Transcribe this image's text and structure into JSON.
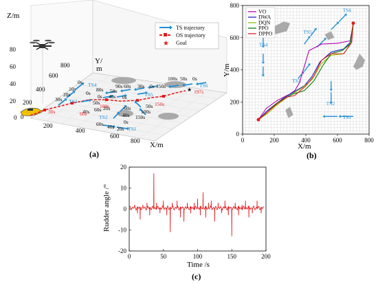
{
  "colors": {
    "ts": "#1f8fd6",
    "os": "#e41a1c",
    "vo": "#b000b0",
    "dwa": "#2020c0",
    "dqn": "#90c000",
    "ppo": "#008000",
    "dppo": "#e41a1c",
    "obstacle": "#a9a9a9",
    "grid": "#d0d0d0"
  },
  "chart_data": [
    {
      "id": "a",
      "type": "scatter",
      "caption": "(a)",
      "zlabel": "Z/m",
      "ylabel": "Y/\nm",
      "xlabel": "X/m",
      "z_ticks": [
        "80",
        "60",
        "40",
        "20",
        "0"
      ],
      "y_ticks": [
        "800",
        "600",
        "400",
        "200",
        "0"
      ],
      "x_ticks": [
        "200",
        "400",
        "600",
        "800"
      ],
      "legend": [
        {
          "label": "TS  trajectory",
          "marker": "arrow-blue"
        },
        {
          "label": "OS  trajectory",
          "marker": "dash-red"
        },
        {
          "label": "Goal",
          "marker": "star-red"
        }
      ],
      "ts_labels": [
        "TS1",
        "TS2",
        "TS3",
        "TS4",
        "TS5",
        "TS6"
      ],
      "time_labels_black": [
        "0s",
        "10s",
        "20s",
        "30s",
        "0s",
        "50s",
        "40s",
        "0s",
        "20s",
        "40s",
        "60s",
        "90s",
        "60s",
        "30s",
        "0s",
        "150s",
        "100s",
        "50s",
        "0s",
        "50s",
        "100s",
        "150s",
        "60s",
        "40s",
        "20s",
        "0s",
        "40s",
        "60s",
        "80s",
        "50s",
        "0s"
      ],
      "time_labels_red": [
        "30s",
        "60s",
        "100s",
        "150s",
        "197s"
      ]
    },
    {
      "id": "b",
      "type": "line",
      "caption": "(b)",
      "xlabel": "X/m",
      "ylabel": "Y/m",
      "xlim": [
        0,
        800
      ],
      "ylim": [
        0,
        800
      ],
      "x_ticks": [
        0,
        200,
        400,
        600,
        800
      ],
      "y_ticks": [
        0,
        200,
        400,
        600,
        800
      ],
      "grid": true,
      "legend_position": "top-left",
      "ts_labels": [
        {
          "label": "TS1",
          "x": 660,
          "y": 95
        },
        {
          "label": "TS2",
          "x": 555,
          "y": 180
        },
        {
          "label": "TS3",
          "x": 340,
          "y": 320
        },
        {
          "label": "TS4",
          "x": 130,
          "y": 545
        },
        {
          "label": "TS5",
          "x": 410,
          "y": 625
        },
        {
          "label": "TS6",
          "x": 660,
          "y": 760
        }
      ],
      "obstacles": [
        {
          "name": "obstacle-1",
          "points": [
            [
              180,
              660
            ],
            [
              260,
              700
            ],
            [
              300,
              690
            ],
            [
              280,
              640
            ],
            [
              200,
              620
            ]
          ]
        },
        {
          "name": "obstacle-2",
          "points": [
            [
              520,
              620
            ],
            [
              560,
              640
            ],
            [
              580,
              600
            ],
            [
              540,
              585
            ]
          ]
        },
        {
          "name": "obstacle-3",
          "points": [
            [
              700,
              420
            ],
            [
              740,
              500
            ],
            [
              775,
              460
            ],
            [
              760,
              420
            ],
            [
              720,
              400
            ]
          ]
        },
        {
          "name": "obstacle-4",
          "points": [
            [
              270,
              150
            ],
            [
              300,
              170
            ],
            [
              320,
              120
            ],
            [
              290,
              100
            ]
          ]
        }
      ],
      "series": [
        {
          "name": "VO",
          "points": [
            [
              100,
              90
            ],
            [
              150,
              160
            ],
            [
              220,
              210
            ],
            [
              300,
              250
            ],
            [
              330,
              270
            ],
            [
              360,
              320
            ],
            [
              390,
              420
            ],
            [
              420,
              520
            ],
            [
              500,
              560
            ],
            [
              600,
              565
            ],
            [
              680,
              580
            ],
            [
              700,
              690
            ]
          ]
        },
        {
          "name": "DWA",
          "points": [
            [
              100,
              90
            ],
            [
              150,
              140
            ],
            [
              200,
              180
            ],
            [
              260,
              225
            ],
            [
              320,
              260
            ],
            [
              390,
              300
            ],
            [
              440,
              360
            ],
            [
              490,
              450
            ],
            [
              560,
              510
            ],
            [
              640,
              530
            ],
            [
              690,
              580
            ],
            [
              700,
              690
            ]
          ]
        },
        {
          "name": "DQN",
          "points": [
            [
              100,
              90
            ],
            [
              160,
              130
            ],
            [
              210,
              175
            ],
            [
              270,
              220
            ],
            [
              330,
              260
            ],
            [
              380,
              290
            ],
            [
              440,
              340
            ],
            [
              500,
              440
            ],
            [
              560,
              490
            ],
            [
              640,
              500
            ],
            [
              680,
              560
            ],
            [
              700,
              690
            ]
          ]
        },
        {
          "name": "PPO",
          "points": [
            [
              100,
              90
            ],
            [
              150,
              130
            ],
            [
              200,
              180
            ],
            [
              260,
              220
            ],
            [
              320,
              250
            ],
            [
              390,
              270
            ],
            [
              450,
              330
            ],
            [
              510,
              430
            ],
            [
              560,
              500
            ],
            [
              630,
              520
            ],
            [
              680,
              560
            ],
            [
              700,
              690
            ]
          ]
        },
        {
          "name": "DPPO",
          "points": [
            [
              100,
              90
            ],
            [
              160,
              140
            ],
            [
              220,
              190
            ],
            [
              280,
              230
            ],
            [
              330,
              240
            ],
            [
              400,
              300
            ],
            [
              450,
              360
            ],
            [
              500,
              460
            ],
            [
              560,
              500
            ],
            [
              640,
              500
            ],
            [
              690,
              570
            ],
            [
              700,
              690
            ]
          ]
        }
      ]
    },
    {
      "id": "c",
      "type": "line",
      "caption": "(c)",
      "xlabel": "Time /s",
      "ylabel": "Rudder angle /°",
      "xlim": [
        0,
        200
      ],
      "ylim": [
        -20,
        20
      ],
      "x_ticks": [
        0,
        50,
        100,
        150,
        200
      ],
      "y_ticks": [
        20,
        10,
        0,
        -10,
        -20
      ],
      "series": [
        {
          "name": "rudder",
          "baseline": 0.5,
          "end": 197,
          "spikes": [
            [
              8,
              2
            ],
            [
              12,
              -2
            ],
            [
              16,
              -5
            ],
            [
              20,
              2
            ],
            [
              26,
              3
            ],
            [
              30,
              -3
            ],
            [
              36,
              17
            ],
            [
              40,
              3
            ],
            [
              45,
              -2
            ],
            [
              50,
              4
            ],
            [
              55,
              -3
            ],
            [
              60,
              -11
            ],
            [
              63,
              3
            ],
            [
              70,
              4
            ],
            [
              75,
              -4
            ],
            [
              80,
              -6
            ],
            [
              85,
              3
            ],
            [
              90,
              -2
            ],
            [
              95,
              3
            ],
            [
              100,
              5
            ],
            [
              104,
              -3
            ],
            [
              108,
              8
            ],
            [
              112,
              -4
            ],
            [
              116,
              3
            ],
            [
              120,
              4
            ],
            [
              125,
              -6
            ],
            [
              130,
              3
            ],
            [
              135,
              -2
            ],
            [
              140,
              4
            ],
            [
              145,
              -3
            ],
            [
              150,
              -13
            ],
            [
              155,
              3
            ],
            [
              160,
              -3
            ],
            [
              165,
              2
            ],
            [
              170,
              4
            ],
            [
              175,
              -4
            ],
            [
              180,
              -2
            ],
            [
              187,
              4
            ],
            [
              193,
              -2
            ]
          ]
        }
      ]
    }
  ]
}
